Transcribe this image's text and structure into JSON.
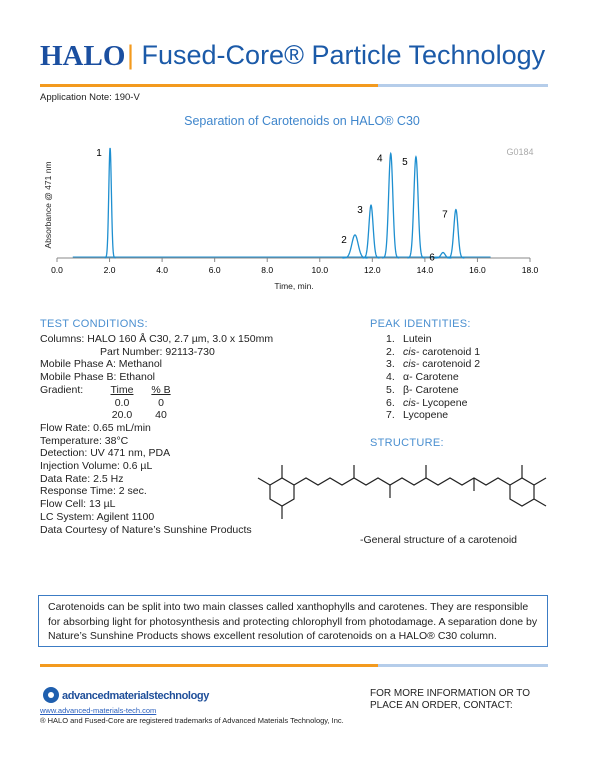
{
  "header": {
    "logo": "HALO",
    "title": "Fused-Core® Particle Technology",
    "app_note": "Application Note: 190-V"
  },
  "chart_data": {
    "type": "line",
    "title": "Separation of Carotenoids on HALO® C30",
    "code": "G0184",
    "y_label": "Absorbance @ 471 nm",
    "x_label": "Time, min.",
    "peak_labels": [
      "1",
      "2",
      "3",
      "4",
      "5",
      "6",
      "7"
    ],
    "x": [
      2.02,
      11.34,
      11.95,
      12.7,
      13.66,
      14.69,
      15.18
    ],
    "values": [
      100,
      21,
      48,
      95,
      92,
      5,
      44
    ],
    "xlim": [
      0,
      18
    ],
    "xticks": [
      {
        "value": 0,
        "label": "0.0"
      },
      {
        "value": 2,
        "label": "2.0"
      },
      {
        "value": 4,
        "label": "4.0"
      },
      {
        "value": 6,
        "label": "6.0"
      },
      {
        "value": 8,
        "label": "8.0"
      },
      {
        "value": 10,
        "label": "10.0"
      },
      {
        "value": 12,
        "label": "12.0"
      },
      {
        "value": 14,
        "label": "14.0"
      },
      {
        "value": 16,
        "label": "16.0"
      },
      {
        "value": 18,
        "label": "18.0"
      }
    ],
    "ylim": [
      0,
      100
    ],
    "color": "#1e8fd0"
  },
  "test_conditions": {
    "heading": "TEST CONDITIONS:",
    "columns": [
      "Columns:  HALO 160 Å C30, 2.7 µm, 3.0 x 150mm",
      "Part Number: 92113-730"
    ],
    "phases": [
      "Mobile Phase A:  Methanol",
      "Mobile Phase B:  Ethanol"
    ],
    "gradient": {
      "label": "Gradient:",
      "headers": [
        "Time",
        "% B"
      ],
      "rows": [
        [
          "0.0",
          "0"
        ],
        [
          "20.0",
          "40"
        ]
      ]
    },
    "other": [
      "Flow Rate:  0.65 mL/min",
      "Temperature:  38°C",
      "Detection:  UV 471 nm, PDA",
      "Injection Volume:  0.6 µL",
      "Data Rate:  2.5 Hz",
      "Response Time:  2 sec.",
      "Flow Cell:  13 µL",
      "LC System:  Agilent 1100",
      "Data Courtesy of Nature’s Sunshine Products"
    ]
  },
  "peak_identities": {
    "heading": "PEAK IDENTITIES:",
    "items": [
      {
        "num": "1.",
        "name": "Lutein"
      },
      {
        "num": "2.",
        "prefix": "cis-",
        "name": "carotenoid 1"
      },
      {
        "num": "3.",
        "prefix": "cis-",
        "name": "carotenoid 2"
      },
      {
        "num": "4.",
        "name": "α- Carotene"
      },
      {
        "num": "5.",
        "name": "β- Carotene"
      },
      {
        "num": "6.",
        "prefix": "cis-",
        "name": "Lycopene"
      },
      {
        "num": "7.",
        "name": "Lycopene"
      }
    ]
  },
  "structure": {
    "heading": "STRUCTURE:",
    "caption": "-General structure of a carotenoid"
  },
  "summary": "Carotenoids can be split into two main classes called xanthophylls and carotenes. They are responsible for absorbing light for photosynthesis and protecting chlorophyll from photodamage.  A separation done by Nature’s Sunshine Products shows excellent resolution of carotenoids on a HALO® C30 column.",
  "footer": {
    "company": "advancedmaterialstechnology",
    "url": "www.advanced-materials-tech.com",
    "trademark": "® HALO and Fused-Core are registered trademarks of Advanced Materials Technology, Inc.",
    "contact": "FOR MORE INFORMATION OR TO PLACE AN ORDER, CONTACT:"
  }
}
